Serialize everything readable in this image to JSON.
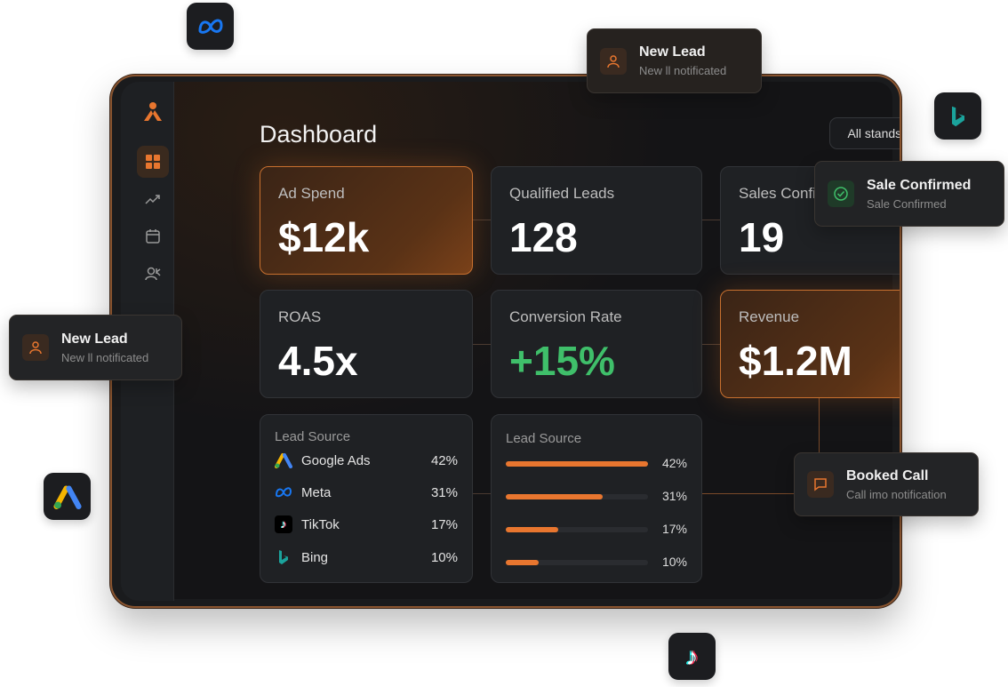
{
  "dashboard": {
    "title": "Dashboard",
    "filter": "All stands"
  },
  "sidebar": {
    "items": [
      "dashboard",
      "analytics",
      "calendar",
      "users"
    ]
  },
  "kpis": [
    {
      "label": "Ad Spend",
      "value": "$12k"
    },
    {
      "label": "Qualified Leads",
      "value": "128"
    },
    {
      "label": "Sales Confirmed",
      "value": "19"
    },
    {
      "label": "ROAS",
      "value": "4.5x"
    },
    {
      "label": "Conversion Rate",
      "value": "+15%"
    },
    {
      "label": "Revenue",
      "value": "$1.2M"
    }
  ],
  "lead_source_list": {
    "title": "Lead Source",
    "rows": [
      {
        "name": "Google Ads",
        "pct": "42%"
      },
      {
        "name": "Meta",
        "pct": "31%"
      },
      {
        "name": "TikTok",
        "pct": "17%"
      },
      {
        "name": "Bing",
        "pct": "10%"
      }
    ]
  },
  "lead_source_bars": {
    "title": "Lead Source",
    "rows": [
      {
        "pct": "42%",
        "fill": 1.0
      },
      {
        "pct": "31%",
        "fill": 0.68
      },
      {
        "pct": "17%",
        "fill": 0.37
      },
      {
        "pct": "10%",
        "fill": 0.23
      }
    ]
  },
  "notifications": [
    {
      "title": "New Lead",
      "subtitle": "New ll notificated"
    },
    {
      "title": "Sale Confirmed",
      "subtitle": "Sale Confirmed"
    },
    {
      "title": "New Lead",
      "subtitle": "New ll notificated"
    },
    {
      "title": "Booked Call",
      "subtitle": "Call imo notification"
    }
  ],
  "colors": {
    "accent": "#e8762f",
    "positive": "#3fbf6a"
  }
}
